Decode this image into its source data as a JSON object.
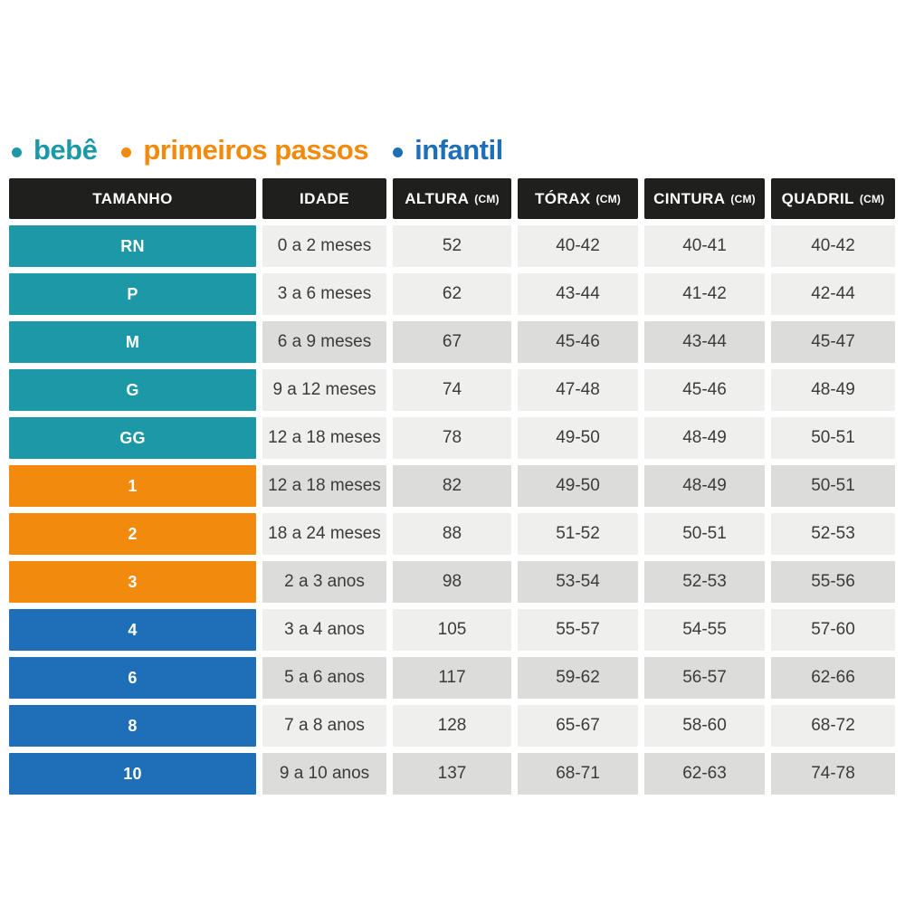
{
  "legend": {
    "items": [
      {
        "id": "bebe",
        "label": "bebê"
      },
      {
        "id": "primeiros-passos",
        "label": "primeiros passos"
      },
      {
        "id": "infantil",
        "label": "infantil"
      }
    ]
  },
  "table": {
    "headers": [
      {
        "id": "tamanho",
        "label": "TAMANHO",
        "unit": ""
      },
      {
        "id": "idade",
        "label": "IDADE",
        "unit": ""
      },
      {
        "id": "altura",
        "label": "ALTURA",
        "unit": "(CM)"
      },
      {
        "id": "torax",
        "label": "TÓRAX",
        "unit": "(CM)"
      },
      {
        "id": "cintura",
        "label": "CINTURA",
        "unit": "(CM)"
      },
      {
        "id": "quadril",
        "label": "QUADRIL",
        "unit": "(CM)"
      }
    ],
    "rows": [
      {
        "size": "RN",
        "group": "bebe",
        "shade": "light",
        "idade": "0 a 2 meses",
        "altura": "52",
        "torax": "40-42",
        "cintura": "40-41",
        "quadril": "40-42"
      },
      {
        "size": "P",
        "group": "bebe",
        "shade": "light",
        "idade": "3 a 6 meses",
        "altura": "62",
        "torax": "43-44",
        "cintura": "41-42",
        "quadril": "42-44"
      },
      {
        "size": "M",
        "group": "bebe",
        "shade": "dark",
        "idade": "6 a 9 meses",
        "altura": "67",
        "torax": "45-46",
        "cintura": "43-44",
        "quadril": "45-47"
      },
      {
        "size": "G",
        "group": "bebe",
        "shade": "light",
        "idade": "9 a 12 meses",
        "altura": "74",
        "torax": "47-48",
        "cintura": "45-46",
        "quadril": "48-49"
      },
      {
        "size": "GG",
        "group": "bebe",
        "shade": "light",
        "idade": "12 a 18 meses",
        "altura": "78",
        "torax": "49-50",
        "cintura": "48-49",
        "quadril": "50-51"
      },
      {
        "size": "1",
        "group": "primeiros-passos",
        "shade": "dark",
        "idade": "12 a 18 meses",
        "altura": "82",
        "torax": "49-50",
        "cintura": "48-49",
        "quadril": "50-51"
      },
      {
        "size": "2",
        "group": "primeiros-passos",
        "shade": "light",
        "idade": "18 a 24 meses",
        "altura": "88",
        "torax": "51-52",
        "cintura": "50-51",
        "quadril": "52-53"
      },
      {
        "size": "3",
        "group": "primeiros-passos",
        "shade": "dark",
        "idade": "2 a 3 anos",
        "altura": "98",
        "torax": "53-54",
        "cintura": "52-53",
        "quadril": "55-56"
      },
      {
        "size": "4",
        "group": "infantil",
        "shade": "light",
        "idade": "3 a 4 anos",
        "altura": "105",
        "torax": "55-57",
        "cintura": "54-55",
        "quadril": "57-60"
      },
      {
        "size": "6",
        "group": "infantil",
        "shade": "dark",
        "idade": "5 a 6 anos",
        "altura": "117",
        "torax": "59-62",
        "cintura": "56-57",
        "quadril": "62-66"
      },
      {
        "size": "8",
        "group": "infantil",
        "shade": "light",
        "idade": "7 a 8 anos",
        "altura": "128",
        "torax": "65-67",
        "cintura": "58-60",
        "quadril": "68-72"
      },
      {
        "size": "10",
        "group": "infantil",
        "shade": "dark",
        "idade": "9 a 10 anos",
        "altura": "137",
        "torax": "68-71",
        "cintura": "62-63",
        "quadril": "74-78"
      }
    ]
  },
  "colors": {
    "bebe": "#1d98a6",
    "primeiros-passos": "#f28b0d",
    "infantil": "#1e6fb7",
    "header_bg": "#1f1f1d",
    "header_text": "#ffffff",
    "row_light": "#efefed",
    "row_dark": "#dcdcda",
    "cell_text": "#3b3b3a",
    "background": "#ffffff"
  },
  "chart_data": {
    "type": "table",
    "title": "",
    "legend_entries": [
      "bebê",
      "primeiros passos",
      "infantil"
    ],
    "columns": [
      "TAMANHO",
      "IDADE",
      "ALTURA (CM)",
      "TÓRAX (CM)",
      "CINTURA (CM)",
      "QUADRIL (CM)"
    ],
    "rows": [
      [
        "RN",
        "0 a 2 meses",
        "52",
        "40-42",
        "40-41",
        "40-42"
      ],
      [
        "P",
        "3 a 6 meses",
        "62",
        "43-44",
        "41-42",
        "42-44"
      ],
      [
        "M",
        "6 a 9 meses",
        "67",
        "45-46",
        "43-44",
        "45-47"
      ],
      [
        "G",
        "9 a 12 meses",
        "74",
        "47-48",
        "45-46",
        "48-49"
      ],
      [
        "GG",
        "12 a 18 meses",
        "78",
        "49-50",
        "48-49",
        "50-51"
      ],
      [
        "1",
        "12 a 18 meses",
        "82",
        "49-50",
        "48-49",
        "50-51"
      ],
      [
        "2",
        "18 a 24 meses",
        "88",
        "51-52",
        "50-51",
        "52-53"
      ],
      [
        "3",
        "2 a 3 anos",
        "98",
        "53-54",
        "52-53",
        "55-56"
      ],
      [
        "4",
        "3 a 4 anos",
        "105",
        "55-57",
        "54-55",
        "57-60"
      ],
      [
        "6",
        "5 a 6 anos",
        "117",
        "59-62",
        "56-57",
        "62-66"
      ],
      [
        "8",
        "7 a 8 anos",
        "128",
        "65-67",
        "58-60",
        "68-72"
      ],
      [
        "10",
        "9 a 10 anos",
        "137",
        "68-71",
        "62-63",
        "74-78"
      ]
    ],
    "row_groups": [
      "bebê",
      "bebê",
      "bebê",
      "bebê",
      "bebê",
      "primeiros passos",
      "primeiros passos",
      "primeiros passos",
      "infantil",
      "infantil",
      "infantil",
      "infantil"
    ]
  }
}
